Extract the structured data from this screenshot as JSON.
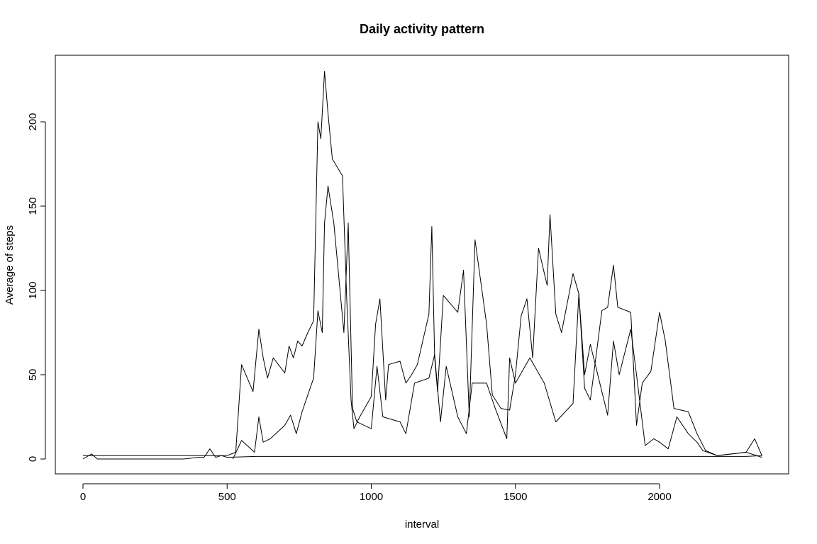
{
  "chart_data": {
    "type": "line",
    "title": "Daily activity pattern",
    "xlabel": "interval",
    "ylabel": "Average of steps",
    "xlim": [
      -100,
      2400
    ],
    "ylim": [
      -10,
      235
    ],
    "grid": false,
    "x_ticks": [
      0,
      500,
      1000,
      1500,
      2000
    ],
    "y_ticks": [
      0,
      50,
      100,
      150,
      200
    ],
    "series": [
      {
        "points": [
          [
            0,
            2
          ],
          [
            50,
            2
          ],
          [
            100,
            2
          ],
          [
            150,
            2
          ],
          [
            200,
            2
          ],
          [
            250,
            2
          ],
          [
            300,
            2
          ],
          [
            350,
            2
          ],
          [
            400,
            2
          ],
          [
            450,
            2
          ],
          [
            500,
            2
          ],
          [
            530,
            4
          ],
          [
            550,
            56
          ],
          [
            590,
            40
          ],
          [
            610,
            77
          ],
          [
            625,
            60
          ],
          [
            640,
            48
          ],
          [
            660,
            60
          ],
          [
            700,
            51
          ],
          [
            715,
            67
          ],
          [
            730,
            60
          ],
          [
            745,
            70
          ],
          [
            760,
            67
          ],
          [
            780,
            75
          ],
          [
            800,
            82
          ],
          [
            815,
            200
          ],
          [
            825,
            190
          ],
          [
            838,
            230
          ],
          [
            850,
            205
          ],
          [
            865,
            178
          ],
          [
            900,
            168
          ],
          [
            915,
            95
          ],
          [
            930,
            35
          ],
          [
            940,
            18
          ],
          [
            960,
            25
          ],
          [
            1000,
            37
          ],
          [
            1015,
            80
          ],
          [
            1030,
            95
          ],
          [
            1050,
            35
          ],
          [
            1060,
            56
          ],
          [
            1100,
            58
          ],
          [
            1120,
            45
          ],
          [
            1140,
            50
          ],
          [
            1160,
            56
          ],
          [
            1200,
            86
          ],
          [
            1210,
            138
          ],
          [
            1220,
            60
          ],
          [
            1230,
            40
          ],
          [
            1250,
            97
          ],
          [
            1300,
            87
          ],
          [
            1320,
            112
          ],
          [
            1340,
            25
          ],
          [
            1360,
            130
          ],
          [
            1400,
            80
          ],
          [
            1420,
            38
          ],
          [
            1450,
            30
          ],
          [
            1480,
            29
          ],
          [
            1500,
            50
          ],
          [
            1520,
            85
          ],
          [
            1540,
            95
          ],
          [
            1560,
            60
          ],
          [
            1580,
            125
          ],
          [
            1610,
            103
          ],
          [
            1620,
            145
          ],
          [
            1640,
            86
          ],
          [
            1660,
            75
          ],
          [
            1700,
            110
          ],
          [
            1720,
            98
          ],
          [
            1740,
            42
          ],
          [
            1760,
            35
          ],
          [
            1800,
            88
          ],
          [
            1820,
            90
          ],
          [
            1840,
            115
          ],
          [
            1855,
            90
          ],
          [
            1900,
            87
          ],
          [
            1920,
            20
          ],
          [
            1940,
            45
          ],
          [
            1970,
            52
          ],
          [
            2000,
            87
          ],
          [
            2020,
            70
          ],
          [
            2050,
            30
          ],
          [
            2100,
            28
          ],
          [
            2130,
            15
          ],
          [
            2160,
            5
          ],
          [
            2200,
            2
          ],
          [
            2250,
            3
          ],
          [
            2300,
            4
          ],
          [
            2330,
            12
          ],
          [
            2355,
            2
          ],
          [
            2300,
            1.5
          ],
          [
            2200,
            1.5
          ],
          [
            2100,
            1.5
          ],
          [
            2000,
            1.5
          ],
          [
            1900,
            1.5
          ],
          [
            1800,
            1.5
          ],
          [
            1700,
            1.5
          ],
          [
            1600,
            1.5
          ],
          [
            1500,
            1.5
          ],
          [
            1400,
            1.5
          ],
          [
            1300,
            1.5
          ],
          [
            1200,
            1.5
          ],
          [
            1100,
            1.5
          ],
          [
            1000,
            1.5
          ],
          [
            900,
            1.5
          ],
          [
            800,
            1.5
          ],
          [
            700,
            1.5
          ],
          [
            600,
            1.5
          ],
          [
            500,
            1
          ],
          [
            480,
            2
          ],
          [
            460,
            1
          ],
          [
            440,
            6
          ],
          [
            420,
            1
          ],
          [
            400,
            1
          ],
          [
            350,
            0
          ],
          [
            300,
            0
          ],
          [
            250,
            0
          ],
          [
            200,
            0
          ],
          [
            150,
            0
          ],
          [
            100,
            0
          ],
          [
            50,
            0
          ],
          [
            30,
            3
          ],
          [
            0,
            0
          ]
        ]
      },
      {
        "points": [
          [
            520,
            0
          ],
          [
            550,
            11
          ],
          [
            595,
            4
          ],
          [
            610,
            25
          ],
          [
            625,
            10
          ],
          [
            650,
            12
          ],
          [
            700,
            20
          ],
          [
            720,
            26
          ],
          [
            740,
            15
          ],
          [
            760,
            28
          ],
          [
            800,
            48
          ],
          [
            815,
            88
          ],
          [
            830,
            75
          ],
          [
            838,
            140
          ],
          [
            850,
            162
          ],
          [
            870,
            140
          ],
          [
            905,
            75
          ],
          [
            920,
            140
          ],
          [
            935,
            30
          ],
          [
            950,
            22
          ],
          [
            1000,
            18
          ],
          [
            1020,
            55
          ],
          [
            1040,
            25
          ],
          [
            1100,
            22
          ],
          [
            1120,
            15
          ],
          [
            1150,
            45
          ],
          [
            1200,
            48
          ],
          [
            1220,
            62
          ],
          [
            1240,
            22
          ],
          [
            1260,
            55
          ],
          [
            1300,
            25
          ],
          [
            1330,
            15
          ],
          [
            1350,
            45
          ],
          [
            1400,
            45
          ],
          [
            1430,
            30
          ],
          [
            1470,
            12
          ],
          [
            1480,
            60
          ],
          [
            1500,
            45
          ],
          [
            1550,
            60
          ],
          [
            1600,
            45
          ],
          [
            1640,
            22
          ],
          [
            1700,
            33
          ],
          [
            1720,
            98
          ],
          [
            1740,
            50
          ],
          [
            1760,
            68
          ],
          [
            1820,
            26
          ],
          [
            1840,
            70
          ],
          [
            1860,
            50
          ],
          [
            1900,
            77
          ],
          [
            1920,
            50
          ],
          [
            1950,
            8
          ],
          [
            1980,
            12
          ],
          [
            2000,
            10
          ],
          [
            2030,
            6
          ],
          [
            2060,
            25
          ],
          [
            2100,
            15
          ],
          [
            2130,
            10
          ],
          [
            2150,
            5
          ],
          [
            2200,
            2
          ],
          [
            2250,
            3
          ],
          [
            2300,
            4
          ],
          [
            2355,
            1
          ]
        ]
      }
    ]
  }
}
